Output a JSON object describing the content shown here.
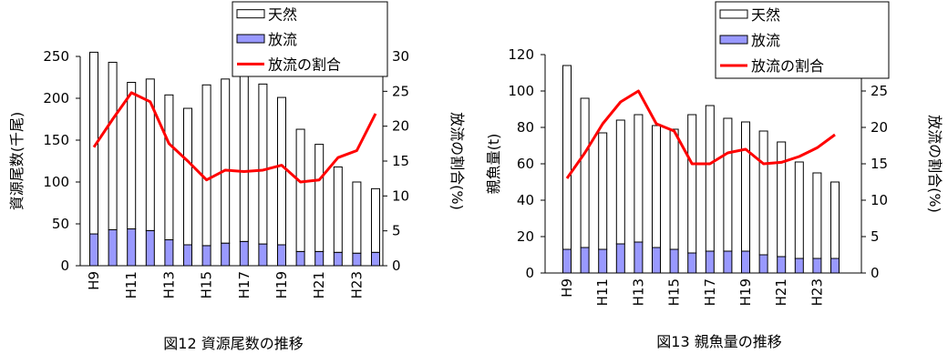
{
  "chart_data": [
    {
      "type": "bar",
      "caption": "図12 資源尾数の推移",
      "ylabel": "資源尾数(千尾)",
      "y2label": "放流の割合(%)",
      "ylim": [
        0,
        250
      ],
      "y2lim": [
        0,
        30
      ],
      "yticks": [
        "0",
        "50",
        "100",
        "150",
        "200",
        "250"
      ],
      "y2ticks": [
        "0",
        "5",
        "10",
        "15",
        "20",
        "25",
        "30"
      ],
      "categories": [
        "H9",
        "H10",
        "H11",
        "H12",
        "H13",
        "H14",
        "H15",
        "H16",
        "H17",
        "H18",
        "H19",
        "H20",
        "H21",
        "H22",
        "H23",
        "H24"
      ],
      "xtick_labels": [
        "H9",
        "",
        "H11",
        "",
        "H13",
        "",
        "H15",
        "",
        "H17",
        "",
        "H19",
        "",
        "H21",
        "",
        "H23",
        ""
      ],
      "legend": [
        "天然",
        "放流",
        "放流の割合"
      ],
      "series": [
        {
          "name": "天然",
          "kind": "bar",
          "color": "#ffffff",
          "values": [
            217,
            200,
            175,
            181,
            173,
            163,
            192,
            196,
            218,
            191,
            176,
            146,
            128,
            102,
            85,
            76
          ]
        },
        {
          "name": "放流",
          "kind": "bar",
          "color": "#9999ff",
          "values": [
            38,
            43,
            44,
            42,
            31,
            25,
            24,
            27,
            29,
            26,
            25,
            17,
            17,
            16,
            15,
            16
          ]
        },
        {
          "name": "放流の割合",
          "kind": "line",
          "axis": "y2",
          "color": "#ff0000",
          "values": [
            17,
            21,
            24.8,
            23.5,
            17.5,
            15,
            12.3,
            13.7,
            13.5,
            13.7,
            14.4,
            12,
            12.3,
            15.5,
            16.5,
            21.8
          ]
        }
      ]
    },
    {
      "type": "bar",
      "caption": "図13 親魚量の推移",
      "ylabel": "親魚量(t)",
      "y2label": "放流の割合(%)",
      "ylim": [
        0,
        120
      ],
      "y2lim": [
        0,
        30
      ],
      "yticks": [
        "0",
        "20",
        "40",
        "60",
        "80",
        "100",
        "120"
      ],
      "y2ticks": [
        "0",
        "5",
        "10",
        "15",
        "20",
        "25",
        "30"
      ],
      "categories": [
        "H9",
        "H10",
        "H11",
        "H12",
        "H13",
        "H14",
        "H15",
        "H16",
        "H17",
        "H18",
        "H19",
        "H20",
        "H21",
        "H22",
        "H23",
        "H24"
      ],
      "xtick_labels": [
        "H9",
        "",
        "H11",
        "",
        "H13",
        "",
        "H15",
        "",
        "H17",
        "",
        "H19",
        "",
        "H21",
        "",
        "H23",
        ""
      ],
      "legend": [
        "天然",
        "放流",
        "放流の割合"
      ],
      "series": [
        {
          "name": "天然",
          "kind": "bar",
          "color": "#ffffff",
          "values": [
            101,
            82,
            64,
            68,
            70,
            67,
            66,
            76,
            80,
            73,
            71,
            68,
            63,
            53,
            47,
            42
          ]
        },
        {
          "name": "放流",
          "kind": "bar",
          "color": "#9999ff",
          "values": [
            13,
            14,
            13,
            16,
            17,
            14,
            13,
            11,
            12,
            12,
            12,
            10,
            9,
            8,
            8,
            8
          ]
        },
        {
          "name": "放流の割合",
          "kind": "line",
          "axis": "y2",
          "color": "#ff0000",
          "values": [
            13,
            16.5,
            20.5,
            23.5,
            25,
            20.5,
            19.5,
            15,
            15,
            16.5,
            17,
            15,
            15.2,
            16,
            17.2,
            19
          ]
        }
      ]
    }
  ]
}
